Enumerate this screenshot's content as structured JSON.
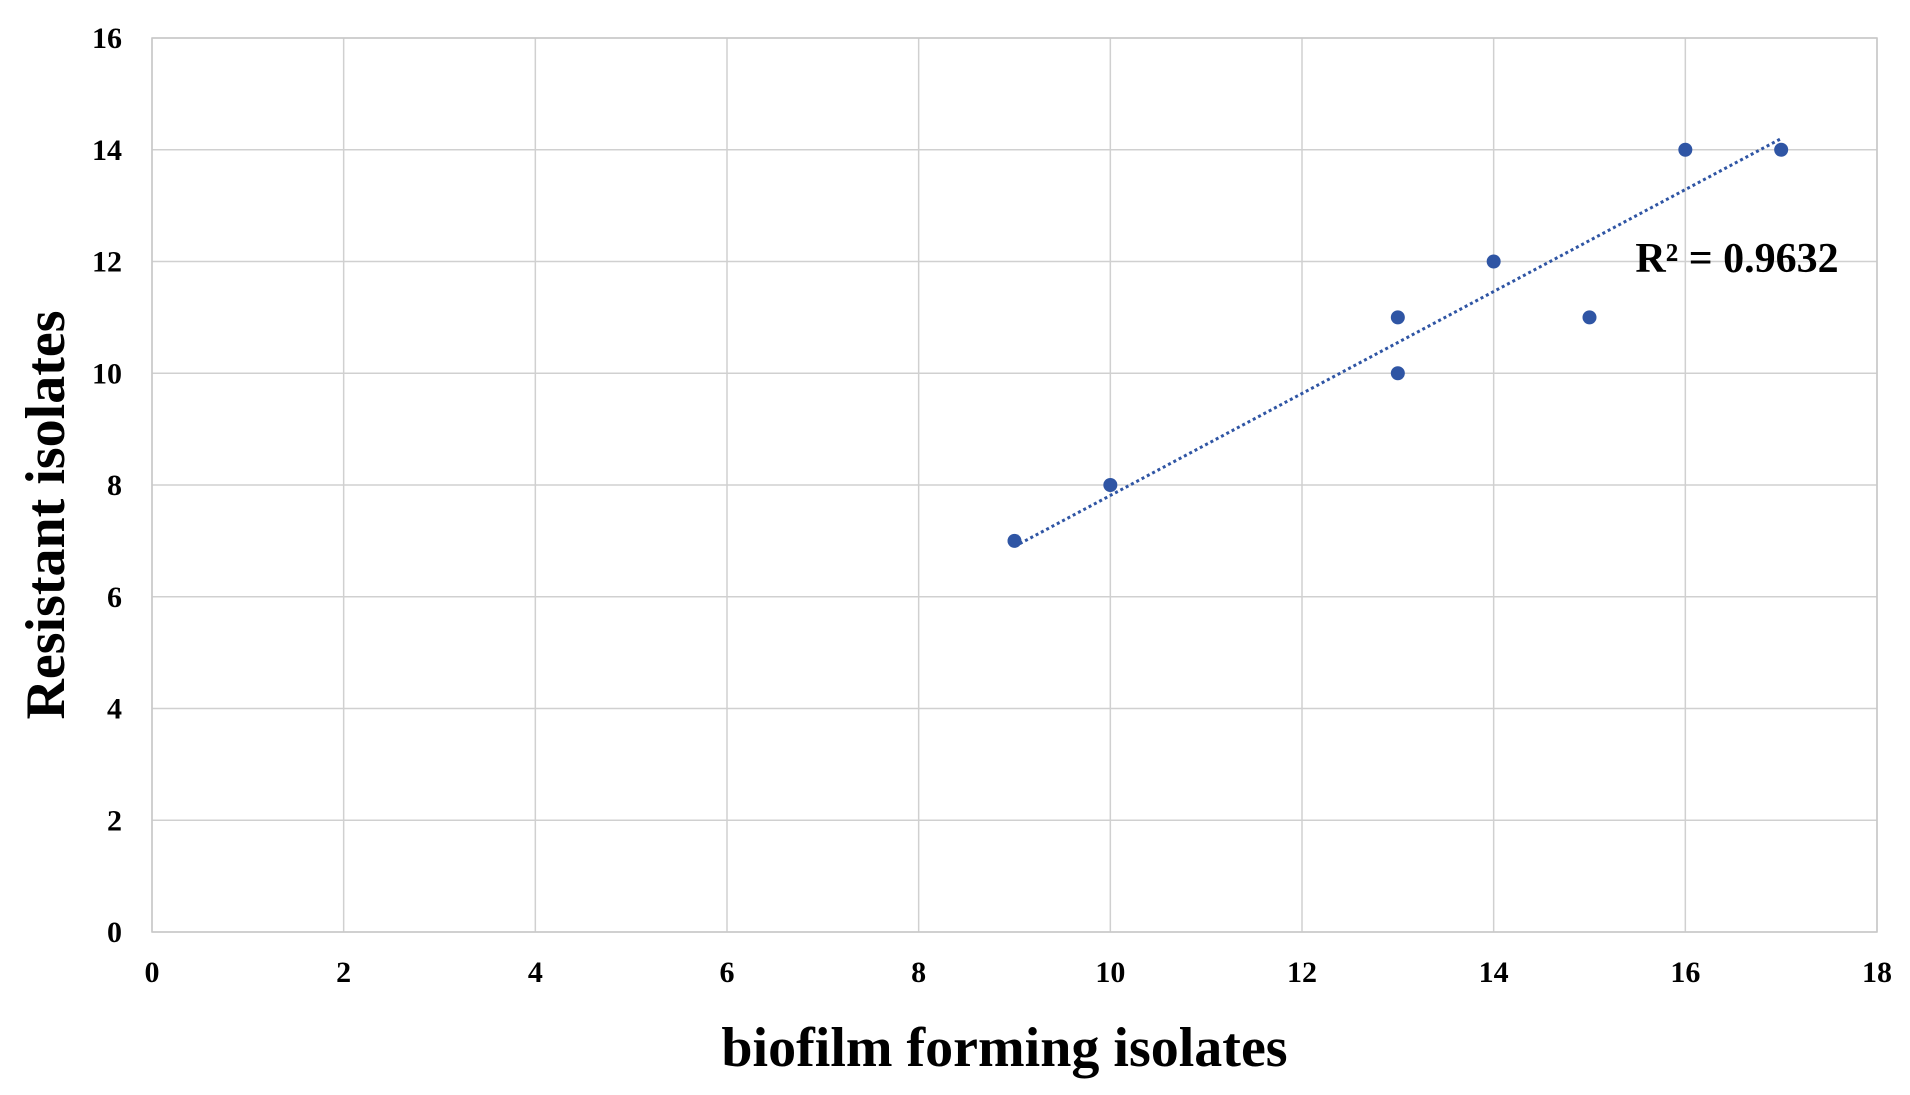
{
  "chart_data": {
    "type": "scatter",
    "title": "",
    "xlabel": "biofilm forming isolates",
    "ylabel": "Resistant isolates",
    "xlim": [
      0,
      18
    ],
    "ylim": [
      0,
      16
    ],
    "x_ticks": [
      0,
      2,
      4,
      6,
      8,
      10,
      12,
      14,
      16,
      18
    ],
    "y_ticks": [
      0,
      2,
      4,
      6,
      8,
      10,
      12,
      14,
      16
    ],
    "grid": true,
    "legend": "none",
    "series": [
      {
        "points": [
          {
            "x": 9,
            "y": 7
          },
          {
            "x": 10,
            "y": 8
          },
          {
            "x": 13,
            "y": 11
          },
          {
            "x": 13,
            "y": 10
          },
          {
            "x": 14,
            "y": 12
          },
          {
            "x": 15,
            "y": 11
          },
          {
            "x": 16,
            "y": 14
          },
          {
            "x": 17,
            "y": 14
          }
        ],
        "color": "#2f55a4"
      }
    ],
    "trendline": {
      "type": "linear",
      "style": "dotted",
      "color": "#2f55a4",
      "x_range": [
        9,
        17
      ],
      "y_range": [
        6.9,
        14.2
      ]
    },
    "annotations": [
      {
        "text": "R² = 0.9632"
      }
    ]
  }
}
